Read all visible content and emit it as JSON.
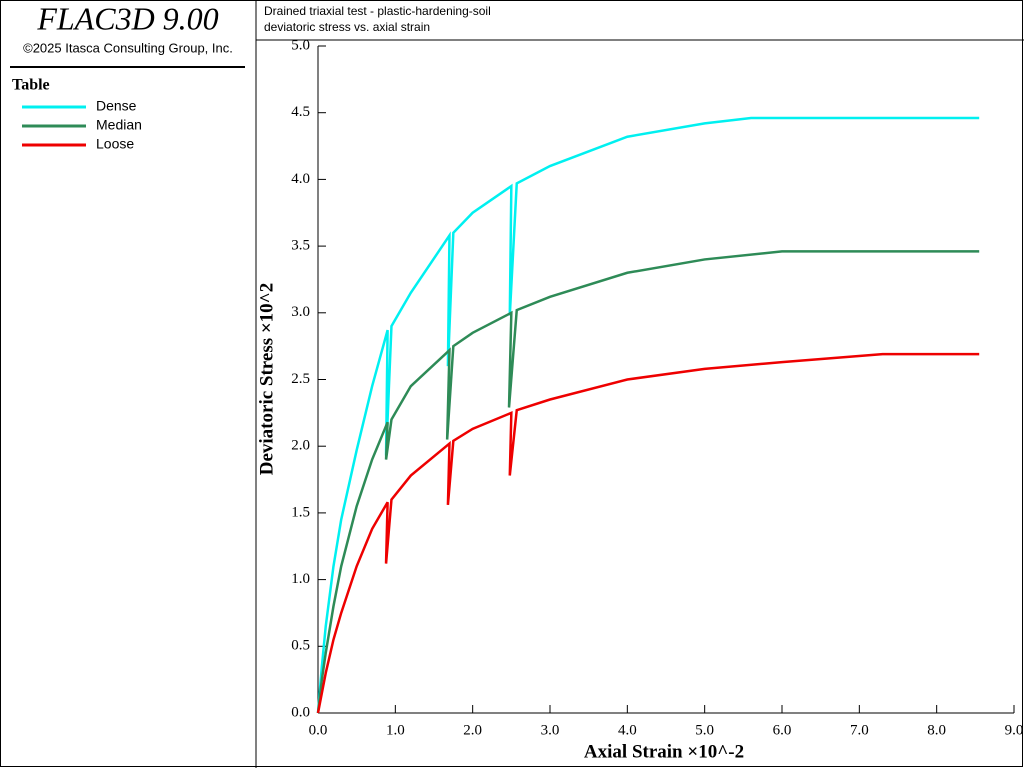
{
  "app": {
    "title": "FLAC3D 9.00",
    "copyright": "©2025 Itasca Consulting Group, Inc."
  },
  "chart_data": {
    "type": "line",
    "title": "Drained triaxial test - plastic-hardening-soil",
    "subtitle": "deviatoric stress vs. axial strain",
    "legend_title": "Table",
    "x_label": "Axial Strain ×10^-2",
    "y_label": "Deviatoric Stress ×10^2",
    "xlim": [
      0,
      9
    ],
    "ylim": [
      0,
      5
    ],
    "xticks": [
      {
        "value": 0,
        "label": "0.0"
      },
      {
        "value": 1,
        "label": "1.0"
      },
      {
        "value": 2,
        "label": "2.0"
      },
      {
        "value": 3,
        "label": "3.0"
      },
      {
        "value": 4,
        "label": "4.0"
      },
      {
        "value": 5,
        "label": "5.0"
      },
      {
        "value": 6,
        "label": "6.0"
      },
      {
        "value": 7,
        "label": "7.0"
      },
      {
        "value": 8,
        "label": "8.0"
      },
      {
        "value": 9,
        "label": "9.0"
      }
    ],
    "yticks": [
      {
        "value": 0,
        "label": "0.0"
      },
      0.5,
      {
        "value": 1,
        "label": "1.0"
      },
      1.5,
      {
        "value": 2,
        "label": "2.0"
      },
      2.5,
      {
        "value": 3,
        "label": "3.0"
      },
      3.5,
      {
        "value": 4,
        "label": "4.0"
      },
      4.5,
      {
        "value": 5,
        "label": "5.0"
      }
    ],
    "series": [
      {
        "name": "Dense",
        "color": "#00f0f0",
        "x": [
          0,
          0.05,
          0.1,
          0.2,
          0.3,
          0.5,
          0.7,
          0.9,
          0.88,
          0.95,
          1.2,
          1.7,
          1.68,
          1.75,
          2.0,
          2.5,
          2.48,
          2.57,
          3.0,
          4.0,
          5.0,
          5.6,
          8.55
        ],
        "values": [
          0,
          0.35,
          0.65,
          1.1,
          1.45,
          1.97,
          2.45,
          2.87,
          1.93,
          2.9,
          3.15,
          3.58,
          2.6,
          3.6,
          3.75,
          3.95,
          2.98,
          3.97,
          4.1,
          4.32,
          4.42,
          4.46,
          4.46
        ]
      },
      {
        "name": "Median",
        "color": "#2e8b57",
        "x": [
          0,
          0.05,
          0.1,
          0.2,
          0.3,
          0.5,
          0.7,
          0.9,
          0.88,
          0.95,
          1.2,
          1.7,
          1.67,
          1.75,
          2.0,
          2.5,
          2.47,
          2.57,
          3.0,
          4.0,
          5.0,
          6.0,
          8.55
        ],
        "values": [
          0,
          0.25,
          0.45,
          0.8,
          1.1,
          1.55,
          1.9,
          2.18,
          1.9,
          2.2,
          2.45,
          2.72,
          2.05,
          2.75,
          2.85,
          3.0,
          2.29,
          3.02,
          3.12,
          3.3,
          3.4,
          3.46,
          3.46
        ]
      },
      {
        "name": "Loose",
        "color": "#ee0000",
        "x": [
          0,
          0.05,
          0.1,
          0.2,
          0.3,
          0.5,
          0.7,
          0.9,
          0.88,
          0.95,
          1.2,
          1.7,
          1.68,
          1.75,
          2.0,
          2.5,
          2.48,
          2.57,
          3.0,
          4.0,
          5.0,
          6.0,
          7.3,
          8.55
        ],
        "values": [
          0,
          0.15,
          0.3,
          0.55,
          0.75,
          1.1,
          1.38,
          1.58,
          1.12,
          1.6,
          1.78,
          2.02,
          1.56,
          2.04,
          2.13,
          2.25,
          1.78,
          2.27,
          2.35,
          2.5,
          2.58,
          2.63,
          2.69,
          2.69
        ]
      }
    ]
  }
}
